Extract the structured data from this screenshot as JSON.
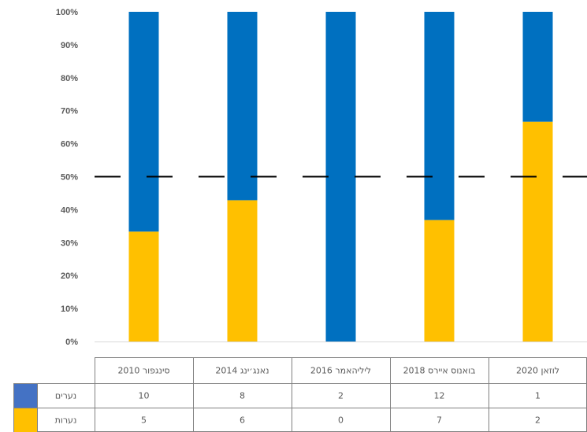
{
  "chart_data": {
    "type": "bar",
    "stacked": "percent",
    "categories": [
      "סינגפור 2010",
      "נאנג׳ינג 2014",
      "ליליהאמר 2016",
      "בואנוס איירס 2018",
      "לוזאן 2020"
    ],
    "series": [
      {
        "name": "נערים",
        "values": [
          10,
          8,
          2,
          12,
          1
        ],
        "color": "#0070c0"
      },
      {
        "name": "נערות",
        "values": [
          5,
          6,
          0,
          7,
          2
        ],
        "color": "#ffc000"
      }
    ],
    "legend_colors": [
      "#4472c4",
      "#ffc000"
    ],
    "y_ticks": [
      "0%",
      "10%",
      "20%",
      "30%",
      "40%",
      "50%",
      "60%",
      "70%",
      "80%",
      "90%",
      "100%"
    ],
    "ylim": [
      0,
      100
    ],
    "reference_line": {
      "value": 50,
      "style": "dashed",
      "color": "#000000"
    },
    "grid": false,
    "legend": "data-table-below"
  }
}
